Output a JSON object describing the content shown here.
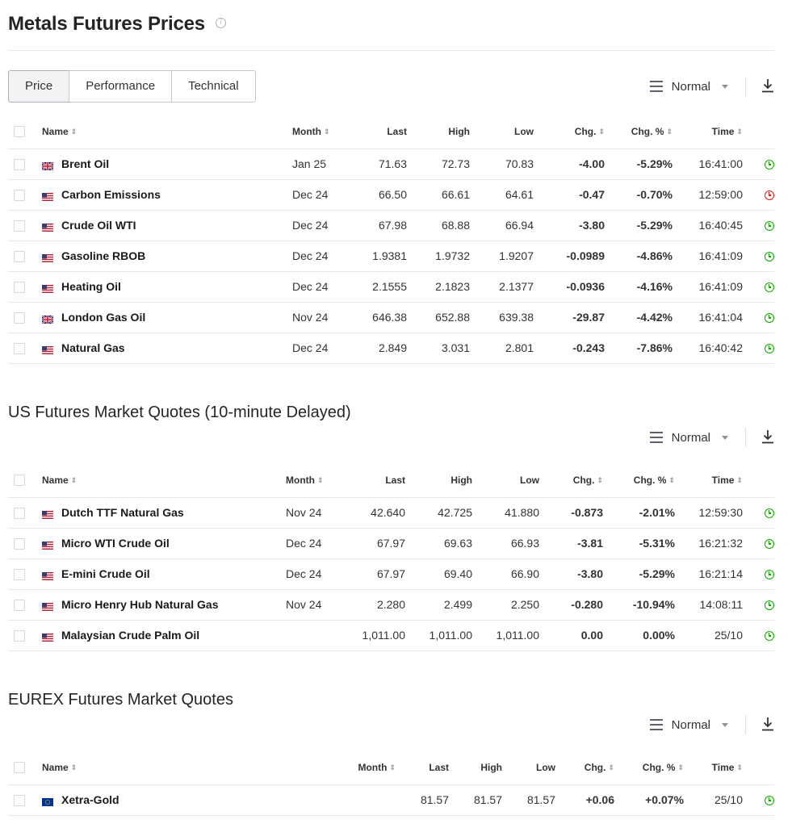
{
  "page": {
    "title": "Metals Futures Prices",
    "info_icon": "info-circle-icon"
  },
  "tabs": [
    "Price",
    "Performance",
    "Technical"
  ],
  "view_mode": "Normal",
  "sections": [
    {
      "title": "",
      "columns": [
        "Name",
        "Month",
        "Last",
        "High",
        "Low",
        "Chg.",
        "Chg. %",
        "Time"
      ],
      "rows": [
        {
          "flag": "uk",
          "name": "Brent Oil",
          "month": "Jan 25",
          "last": "71.63",
          "high": "72.73",
          "low": "70.83",
          "chg": "-4.00",
          "chg_pct": "-5.29%",
          "time": "16:41:00",
          "dir": "neg",
          "status": "open"
        },
        {
          "flag": "us",
          "name": "Carbon Emissions",
          "month": "Dec 24",
          "last": "66.50",
          "high": "66.61",
          "low": "64.61",
          "chg": "-0.47",
          "chg_pct": "-0.70%",
          "time": "12:59:00",
          "dir": "neg",
          "status": "closed"
        },
        {
          "flag": "us",
          "name": "Crude Oil WTI",
          "month": "Dec 24",
          "last": "67.98",
          "high": "68.88",
          "low": "66.94",
          "chg": "-3.80",
          "chg_pct": "-5.29%",
          "time": "16:40:45",
          "dir": "neg",
          "status": "open"
        },
        {
          "flag": "us",
          "name": "Gasoline RBOB",
          "month": "Dec 24",
          "last": "1.9381",
          "high": "1.9732",
          "low": "1.9207",
          "chg": "-0.0989",
          "chg_pct": "-4.86%",
          "time": "16:41:09",
          "dir": "neg",
          "status": "open"
        },
        {
          "flag": "us",
          "name": "Heating Oil",
          "month": "Dec 24",
          "last": "2.1555",
          "high": "2.1823",
          "low": "2.1377",
          "chg": "-0.0936",
          "chg_pct": "-4.16%",
          "time": "16:41:09",
          "dir": "neg",
          "status": "open"
        },
        {
          "flag": "uk",
          "name": "London Gas Oil",
          "month": "Nov 24",
          "last": "646.38",
          "high": "652.88",
          "low": "639.38",
          "chg": "-29.87",
          "chg_pct": "-4.42%",
          "time": "16:41:04",
          "dir": "neg",
          "status": "open"
        },
        {
          "flag": "us",
          "name": "Natural Gas",
          "month": "Dec 24",
          "last": "2.849",
          "high": "3.031",
          "low": "2.801",
          "chg": "-0.243",
          "chg_pct": "-7.86%",
          "time": "16:40:42",
          "dir": "neg",
          "status": "open"
        }
      ]
    },
    {
      "title": "US Futures Market Quotes (10-minute Delayed)",
      "columns": [
        "Name",
        "Month",
        "Last",
        "High",
        "Low",
        "Chg.",
        "Chg. %",
        "Time"
      ],
      "rows": [
        {
          "flag": "us",
          "name": "Dutch TTF Natural Gas",
          "month": "Nov 24",
          "last": "42.640",
          "high": "42.725",
          "low": "41.880",
          "chg": "-0.873",
          "chg_pct": "-2.01%",
          "time": "12:59:30",
          "dir": "neg",
          "status": "open"
        },
        {
          "flag": "us",
          "name": "Micro WTI Crude Oil",
          "month": "Dec 24",
          "last": "67.97",
          "high": "69.63",
          "low": "66.93",
          "chg": "-3.81",
          "chg_pct": "-5.31%",
          "time": "16:21:32",
          "dir": "neg",
          "status": "open"
        },
        {
          "flag": "us",
          "name": "E-mini Crude Oil",
          "month": "Dec 24",
          "last": "67.97",
          "high": "69.40",
          "low": "66.90",
          "chg": "-3.80",
          "chg_pct": "-5.29%",
          "time": "16:21:14",
          "dir": "neg",
          "status": "open"
        },
        {
          "flag": "us",
          "name": "Micro Henry Hub Natural Gas",
          "month": "Nov 24",
          "last": "2.280",
          "high": "2.499",
          "low": "2.250",
          "chg": "-0.280",
          "chg_pct": "-10.94%",
          "time": "14:08:11",
          "dir": "neg",
          "status": "open"
        },
        {
          "flag": "us",
          "name": "Malaysian Crude Palm Oil",
          "month": "",
          "last": "1,011.00",
          "high": "1,011.00",
          "low": "1,011.00",
          "chg": "0.00",
          "chg_pct": "0.00%",
          "time": "25/10",
          "dir": "zero",
          "status": "open"
        }
      ]
    },
    {
      "title": "EUREX Futures Market Quotes",
      "columns": [
        "Name",
        "Month",
        "Last",
        "High",
        "Low",
        "Chg.",
        "Chg. %",
        "Time"
      ],
      "rows": [
        {
          "flag": "eu",
          "name": "Xetra-Gold",
          "month": "",
          "last": "81.57",
          "high": "81.57",
          "low": "81.57",
          "chg": "+0.06",
          "chg_pct": "+0.07%",
          "time": "25/10",
          "dir": "pos",
          "status": "open"
        }
      ]
    }
  ],
  "colors": {
    "negative": "#d91e18",
    "positive": "#0ea600",
    "border": "#e6e9eb"
  },
  "icons": {
    "view": "hamburger-menu-icon",
    "dropdown": "caret-down-icon",
    "download": "download-icon",
    "sort": "sort-arrows-icon",
    "status_open": "clock-green-icon",
    "status_closed": "clock-red-icon"
  }
}
